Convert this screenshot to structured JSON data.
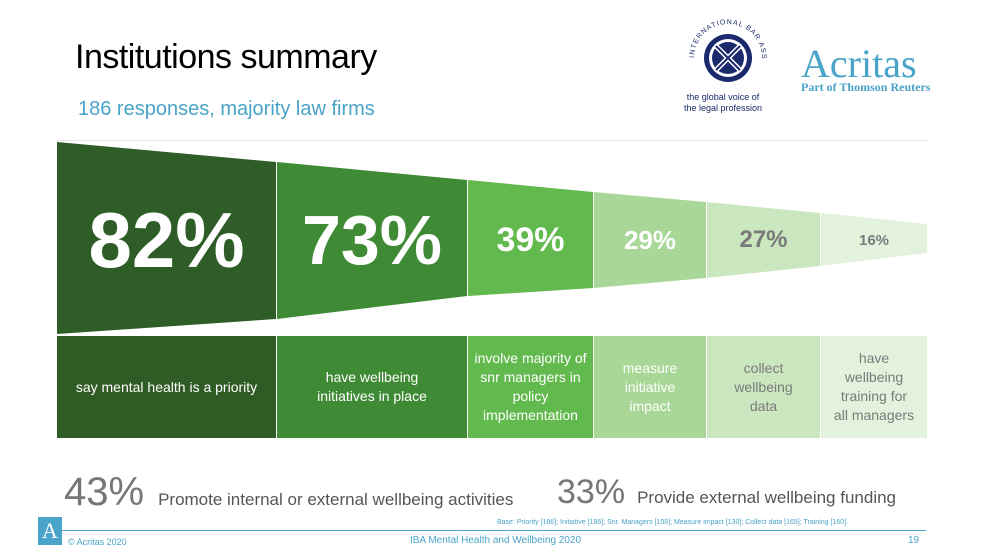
{
  "header": {
    "title": "Institutions summary",
    "subtitle": "186 responses, majority law firms"
  },
  "logos": {
    "iba": {
      "icon": "iba-globe-logo",
      "arc_text": "INTERNATIONAL BAR ASSOCIATION",
      "tagline_line1": "the global voice of",
      "tagline_line2": "the legal profession"
    },
    "acritas": {
      "name": "Acritas",
      "sub": "Part of Thomson Reuters"
    }
  },
  "funnel": [
    {
      "value": "82%",
      "label": "say mental health is a priority",
      "color": "#2e5d27",
      "label_color": "#2f5b25"
    },
    {
      "value": "73%",
      "label": "have wellbeing initiatives in place",
      "color": "#3f8a35",
      "label_color": "#3f8a35"
    },
    {
      "value": "39%",
      "label": "involve majority of snr managers in policy implementation",
      "color": "#62b94e",
      "label_color": "#62b94e"
    },
    {
      "value": "29%",
      "label": "measure initiative impact",
      "color": "#a9d797",
      "label_color": "#a9d797"
    },
    {
      "value": "27%",
      "label": "collect wellbeing data",
      "color": "#cbe7bf",
      "label_color": "#cbe7bf",
      "value_color": "#7a7a7a"
    },
    {
      "value": "16%",
      "label": "have wellbeing training for all managers",
      "color": "#e2f2dc",
      "label_color": "#e2f2dc",
      "value_color": "#7a7a7a"
    }
  ],
  "stats": [
    {
      "value": "43%",
      "text": "Promote internal or external wellbeing activities"
    },
    {
      "value": "33%",
      "text": "Provide external wellbeing funding"
    }
  ],
  "footer": {
    "base_note": "Base: Priority [186]; Initiative [186]; Snr. Managers [108]; Measure impact [130]; Collect data [165]; Training [160].",
    "logo_letter": "A",
    "copyright": "© Acritas 2020",
    "title": "IBA Mental Health and Wellbeing 2020",
    "page": "19"
  },
  "colors": {
    "accent": "#4aa3c8",
    "iba_navy": "#1a2a6c"
  }
}
